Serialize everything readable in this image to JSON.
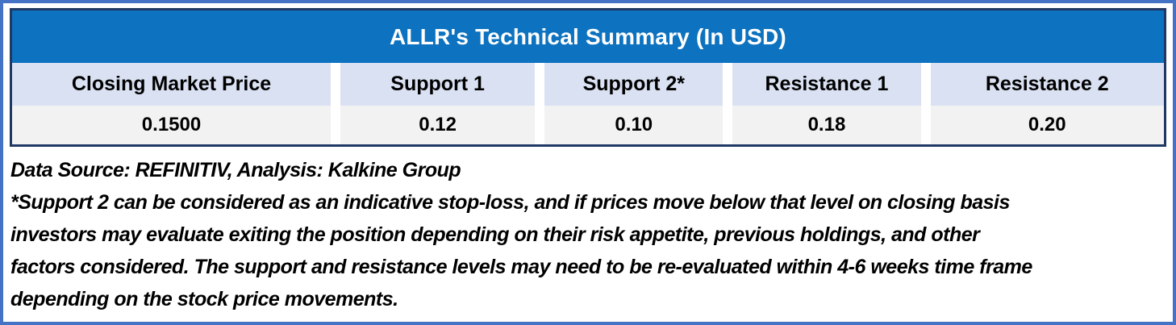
{
  "colors": {
    "outer_frame": "#4472C4",
    "table_border": "#1F3864",
    "title_bg": "#0D72BF",
    "title_text": "#FFFFFF",
    "header_bg": "#D9E1F2",
    "value_bg": "#F2F2F2",
    "body_text": "#000000"
  },
  "table": {
    "title": "ALLR's Technical Summary (In USD)",
    "columns": [
      {
        "label": "Closing Market Price",
        "value": "0.1500"
      },
      {
        "label": "Support 1",
        "value": "0.12"
      },
      {
        "label": "Support 2*",
        "value": "0.10"
      },
      {
        "label": "Resistance 1",
        "value": "0.18"
      },
      {
        "label": "Resistance 2",
        "value": "0.20"
      }
    ]
  },
  "notes": {
    "source_line": "Data Source: REFINITIV, Analysis: Kalkine Group",
    "disclaimer_lines": [
      "*Support 2 can be considered as an indicative stop-loss, and if prices move below that level on closing basis",
      "investors may evaluate exiting the position depending on their risk appetite, previous holdings, and other",
      "factors considered. The support and resistance levels may need to be re-evaluated within 4-6 weeks time frame",
      "depending on the stock price movements."
    ]
  },
  "chart_data": {
    "type": "table",
    "title": "ALLR's Technical Summary (In USD)",
    "columns": [
      "Closing Market Price",
      "Support 1",
      "Support 2*",
      "Resistance 1",
      "Resistance 2"
    ],
    "rows": [
      [
        "0.1500",
        "0.12",
        "0.10",
        "0.18",
        "0.20"
      ]
    ],
    "values": {
      "closing_market_price": 0.15,
      "support_1": 0.12,
      "support_2": 0.1,
      "resistance_1": 0.18,
      "resistance_2": 0.2
    },
    "footnote": "*Support 2 can be considered as an indicative stop-loss, and if prices move below that level on closing basis investors may evaluate exiting the position depending on their risk appetite, previous holdings, and other factors considered. The support and resistance levels may need to be re-evaluated within 4-6 weeks time frame depending on the stock price movements.",
    "source": "Data Source: REFINITIV, Analysis: Kalkine Group"
  }
}
